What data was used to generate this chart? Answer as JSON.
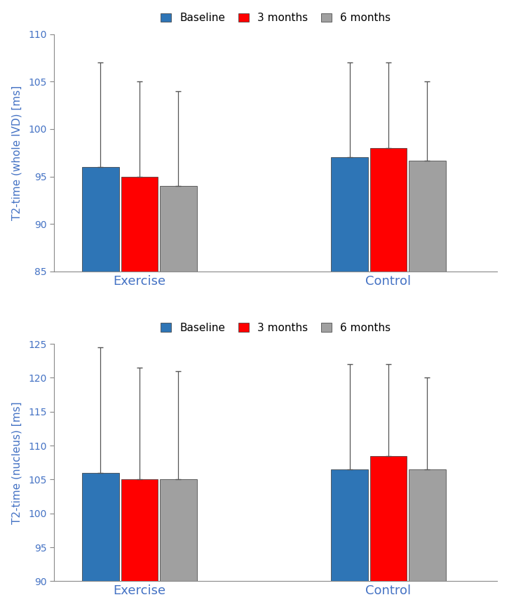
{
  "top": {
    "ylabel": "T2-time (whole IVD) [ms]",
    "ylim": [
      85,
      110
    ],
    "yticks": [
      85,
      90,
      95,
      100,
      105,
      110
    ],
    "groups": [
      "Exercise",
      "Control"
    ],
    "series": [
      "Baseline",
      "3 months",
      "6 months"
    ],
    "values": {
      "Exercise": [
        96.0,
        95.0,
        94.0
      ],
      "Control": [
        97.0,
        98.0,
        96.7
      ]
    },
    "errors_upper": {
      "Exercise": [
        11.0,
        10.0,
        10.0
      ],
      "Control": [
        10.0,
        9.0,
        8.3
      ]
    }
  },
  "bottom": {
    "ylabel": "T2-time (nucleus) [ms]",
    "ylim": [
      90,
      125
    ],
    "yticks": [
      90,
      95,
      100,
      105,
      110,
      115,
      120,
      125
    ],
    "groups": [
      "Exercise",
      "Control"
    ],
    "series": [
      "Baseline",
      "3 months",
      "6 months"
    ],
    "values": {
      "Exercise": [
        106.0,
        105.0,
        105.0
      ],
      "Control": [
        106.5,
        108.5,
        106.5
      ]
    },
    "errors_upper": {
      "Exercise": [
        18.5,
        16.5,
        16.0
      ],
      "Control": [
        15.5,
        13.5,
        13.5
      ]
    }
  },
  "colors": [
    "#2E75B6",
    "#FF0000",
    "#A0A0A0"
  ],
  "bar_width": 0.25,
  "legend_labels": [
    "Baseline",
    "3 months",
    "6 months"
  ],
  "group_positions": [
    1.0,
    2.6
  ],
  "background_color": "#FFFFFF",
  "tick_label_color": "#4472C4",
  "axis_label_color": "#4472C4",
  "errorbar_color": "#555555",
  "errorbar_linewidth": 0.9,
  "capsize": 3
}
